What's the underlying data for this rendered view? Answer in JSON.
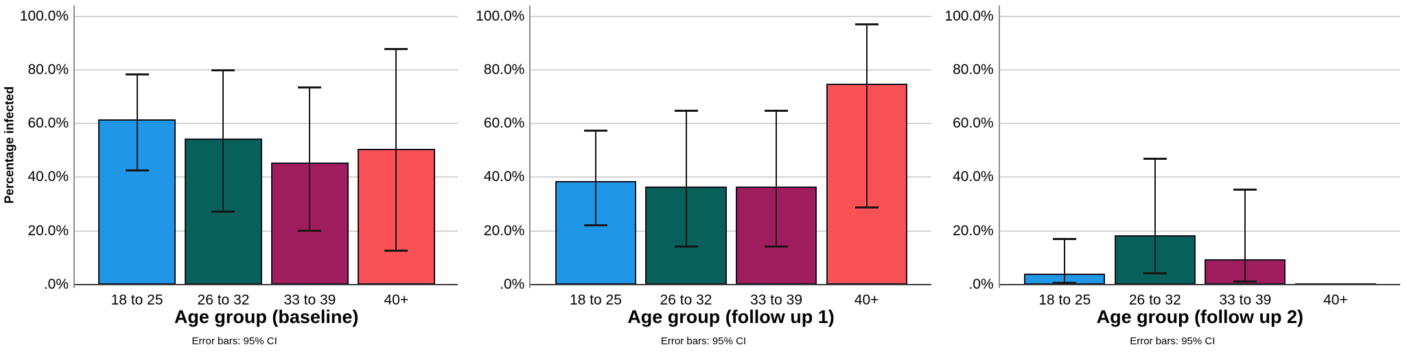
{
  "styles": {
    "bar_palette": [
      "#1f97e6",
      "#08605b",
      "#a01d5d",
      "#fa5157"
    ],
    "bar_border": "#11111e",
    "zero_bar_color": "#222222",
    "grid_color": "#d4d4d4",
    "axis_line_color": "#8c8c8c",
    "baseline_color": "#3d3d3d",
    "error_bar_color": "#161616"
  },
  "chart_data": [
    {
      "type": "bar",
      "xlabel": "Age group (baseline)",
      "ylabel": "Percentage infected",
      "footnote": "Error bars: 95% CI",
      "categories": [
        "18 to 25",
        "26 to 32",
        "33 to 39",
        "40+"
      ],
      "values": [
        61.5,
        54.5,
        45.5,
        50.5
      ],
      "ci_low": [
        42.5,
        27,
        20,
        12.5
      ],
      "ci_high": [
        78.5,
        80,
        73.5,
        88
      ],
      "ytick_labels": [
        ".0%",
        "20.0%",
        "40.0%",
        "60.0%",
        "80.0%",
        "100.0%"
      ],
      "ytick_values": [
        0,
        20,
        40,
        60,
        80,
        100
      ],
      "ylim": [
        0,
        104
      ],
      "grid": true,
      "legend": null
    },
    {
      "type": "bar",
      "xlabel": "Age group (follow up 1)",
      "ylabel": "",
      "footnote": "Error bars: 95% CI",
      "categories": [
        "18 to 25",
        "26 to 32",
        "33 to 39",
        "40+"
      ],
      "values": [
        38.5,
        36.5,
        36.5,
        75
      ],
      "ci_low": [
        22,
        14,
        14,
        28.5
      ],
      "ci_high": [
        57.5,
        65,
        65,
        97
      ],
      "ytick_labels": [
        ".0%",
        "20.0%",
        "40.0%",
        "60.0%",
        "80.0%",
        "100.0%"
      ],
      "ytick_values": [
        0,
        20,
        40,
        60,
        80,
        100
      ],
      "ylim": [
        0,
        104
      ],
      "grid": true,
      "legend": null
    },
    {
      "type": "bar",
      "xlabel": "Age group (follow up 2)",
      "ylabel": "",
      "footnote": "Error bars: 95% CI",
      "categories": [
        "18 to 25",
        "26 to 32",
        "33 to 39",
        "40+"
      ],
      "values": [
        4,
        18.5,
        9.5,
        0
      ],
      "ci_low": [
        0.5,
        4,
        1,
        null
      ],
      "ci_high": [
        17,
        47,
        35.5,
        null
      ],
      "ytick_labels": [
        ".0%",
        "20.0%",
        "40.0%",
        "60.0%",
        "80.0%",
        "100.0%"
      ],
      "ytick_values": [
        0,
        20,
        40,
        60,
        80,
        100
      ],
      "ylim": [
        0,
        104
      ],
      "grid": true,
      "legend": null
    }
  ]
}
